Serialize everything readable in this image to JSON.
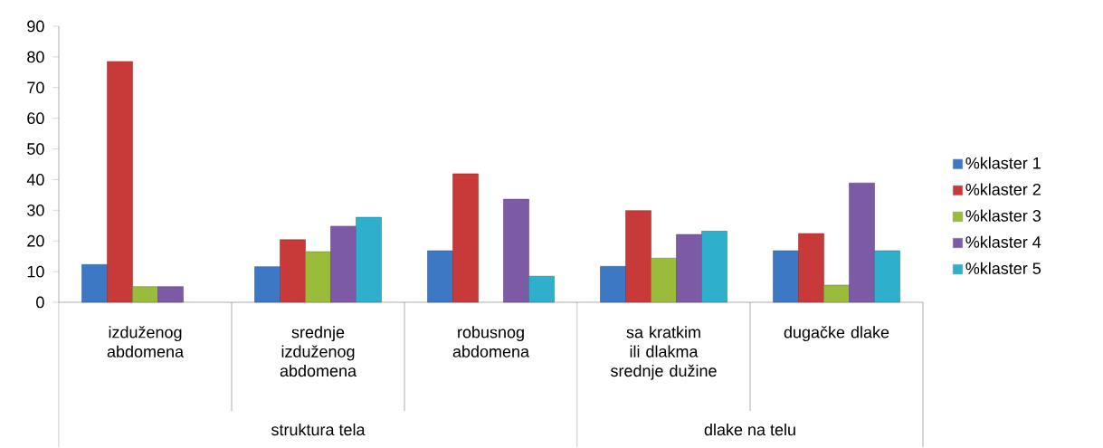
{
  "chart_data": {
    "type": "bar",
    "categories": [
      "izduženog abdomena",
      "srednje izduženog abdomena",
      "robusnog abdomena",
      "sa kratkim ili dlakma srednje dužine",
      "dugačke dlake"
    ],
    "series": [
      {
        "name": "%klaster 1",
        "color": "#3c78c4",
        "values": [
          12.3,
          11.6,
          16.8,
          11.7,
          16.8
        ]
      },
      {
        "name": "%klaster 2",
        "color": "#c83a3a",
        "values": [
          78.5,
          20.4,
          41.9,
          29.9,
          22.4
        ]
      },
      {
        "name": "%klaster 3",
        "color": "#9bbb3b",
        "values": [
          5.1,
          16.5,
          null,
          14.4,
          5.6
        ]
      },
      {
        "name": "%klaster 4",
        "color": "#7d5aa6",
        "values": [
          5.1,
          24.8,
          33.6,
          22.1,
          38.9
        ]
      },
      {
        "name": "%klaster 5",
        "color": "#2eb0cc",
        "values": [
          null,
          27.7,
          8.5,
          23.2,
          16.8
        ]
      }
    ],
    "ylim": [
      0,
      90
    ],
    "yticks": [
      0,
      10,
      20,
      30,
      40,
      50,
      60,
      70,
      80,
      90
    ],
    "annotations": [
      "struktura tela",
      "dlake na telu"
    ],
    "legend": "right"
  }
}
